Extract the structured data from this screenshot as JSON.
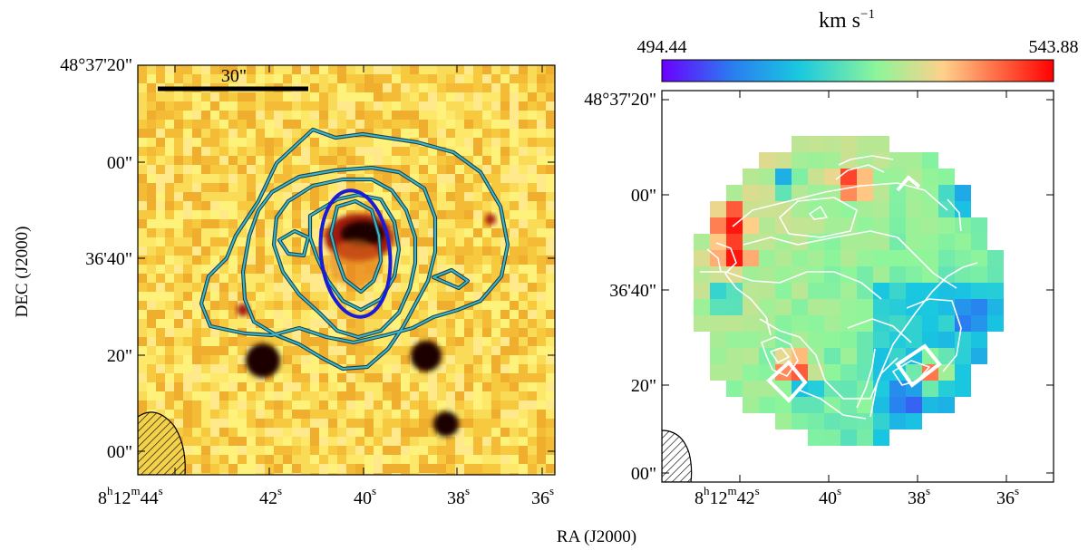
{
  "chart_data": [
    {
      "type": "heatmap",
      "panel": "left",
      "description_kind": "sky image with contours",
      "colormap": [
        "#fff27a",
        "#f6c236",
        "#e6781e",
        "#a31a0c",
        "#1a0400"
      ],
      "contour_color": "#3ab7c9",
      "beam_ellipse_color": "#1c1cd6",
      "scale_bar_label": "30\"",
      "yticks": [
        "48°37'20\"",
        "00\"",
        "36'40\"",
        "20\"",
        "00\""
      ],
      "xticks": [
        "8h12m44s",
        "42s",
        "40s",
        "38s",
        "36s"
      ],
      "xtick_parts": [
        {
          "main": "8",
          "sup1": "h",
          "mid": "12",
          "sup2": "m",
          "end": "44",
          "sup3": "s"
        },
        {
          "main": "42",
          "sup3": "s"
        },
        {
          "main": "40",
          "sup3": "s"
        },
        {
          "main": "38",
          "sup3": "s"
        },
        {
          "main": "36",
          "sup3": "s"
        }
      ]
    },
    {
      "type": "heatmap",
      "panel": "right",
      "description_kind": "velocity field",
      "colorbar": {
        "min": 494.44,
        "max": 543.88,
        "min_label": "494.44",
        "max_label": "543.88",
        "unit": "km s",
        "unit_exp": "−1",
        "colormap": [
          "#6a00ff",
          "#2a7df0",
          "#19c8e0",
          "#8ef59a",
          "#ffd08a",
          "#ff5a3a",
          "#ff0000"
        ]
      },
      "contour_color": "#ffffff",
      "yticks": [
        "48°37'20\"",
        "00\"",
        "36'40\"",
        "20\"",
        "00\""
      ],
      "xticks": [
        "8h12m42s",
        "40s",
        "38s",
        "36s"
      ],
      "xtick_parts": [
        {
          "main": "8",
          "sup1": "h",
          "mid": "12",
          "sup2": "m",
          "end": "42",
          "sup3": "s"
        },
        {
          "main": "40",
          "sup3": "s"
        },
        {
          "main": "38",
          "sup3": "s"
        },
        {
          "main": "36",
          "sup3": "s"
        }
      ]
    }
  ],
  "axes": {
    "ylabel": "DEC (J2000)",
    "xlabel": "RA (J2000)"
  }
}
